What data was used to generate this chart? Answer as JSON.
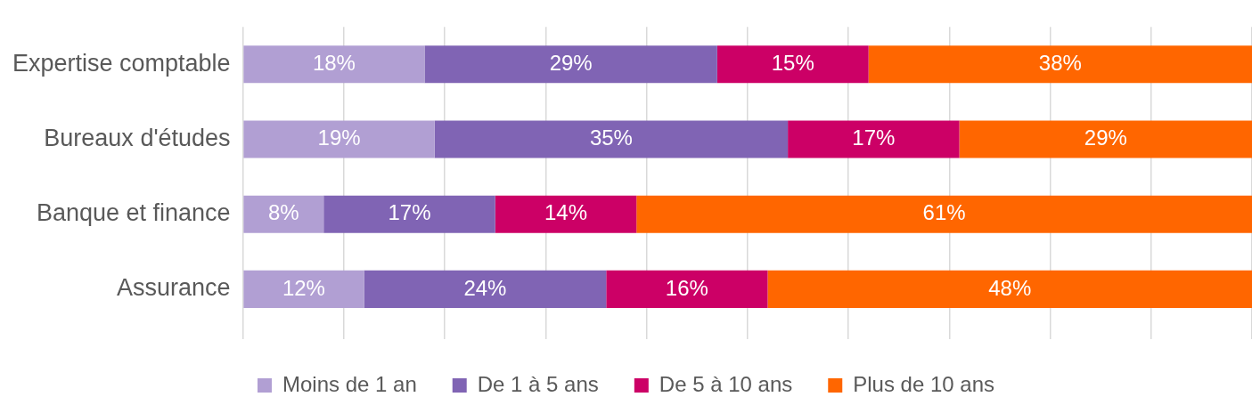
{
  "chart_data": {
    "type": "bar",
    "orientation": "horizontal",
    "stacked": true,
    "categories": [
      "Expertise comptable",
      "Bureaux d'études",
      "Banque et finance",
      "Assurance"
    ],
    "series": [
      {
        "name": "Moins de 1 an",
        "color": "#b19fd3",
        "values": [
          18,
          19,
          8,
          12
        ],
        "value_labels": [
          "18%",
          "19%",
          "8%",
          "12%"
        ]
      },
      {
        "name": "De 1 à 5 ans",
        "color": "#8064b4",
        "values": [
          29,
          35,
          17,
          24
        ],
        "value_labels": [
          "29%",
          "35%",
          "17%",
          "24%"
        ]
      },
      {
        "name": "De 5 à 10 ans",
        "color": "#cc0066",
        "values": [
          15,
          17,
          14,
          16
        ],
        "value_labels": [
          "15%",
          "17%",
          "14%",
          "16%"
        ]
      },
      {
        "name": "Plus de 10 ans",
        "color": "#ff6600",
        "values": [
          38,
          29,
          61,
          48
        ],
        "value_labels": [
          "38%",
          "29%",
          "61%",
          "48%"
        ]
      }
    ],
    "xlim": [
      0,
      100
    ],
    "xticks": [
      {
        "value": 0,
        "label": null
      },
      {
        "value": 10,
        "label": null
      },
      {
        "value": 20,
        "label": null
      },
      {
        "value": 30,
        "label": null
      },
      {
        "value": 40,
        "label": null
      },
      {
        "value": 50,
        "label": null
      },
      {
        "value": 60,
        "label": null
      },
      {
        "value": 70,
        "label": null
      },
      {
        "value": 80,
        "label": null
      },
      {
        "value": 90,
        "label": null
      },
      {
        "value": 100,
        "label": null
      }
    ],
    "tick_labels": "y",
    "grid": "x",
    "legend": "bottom"
  }
}
